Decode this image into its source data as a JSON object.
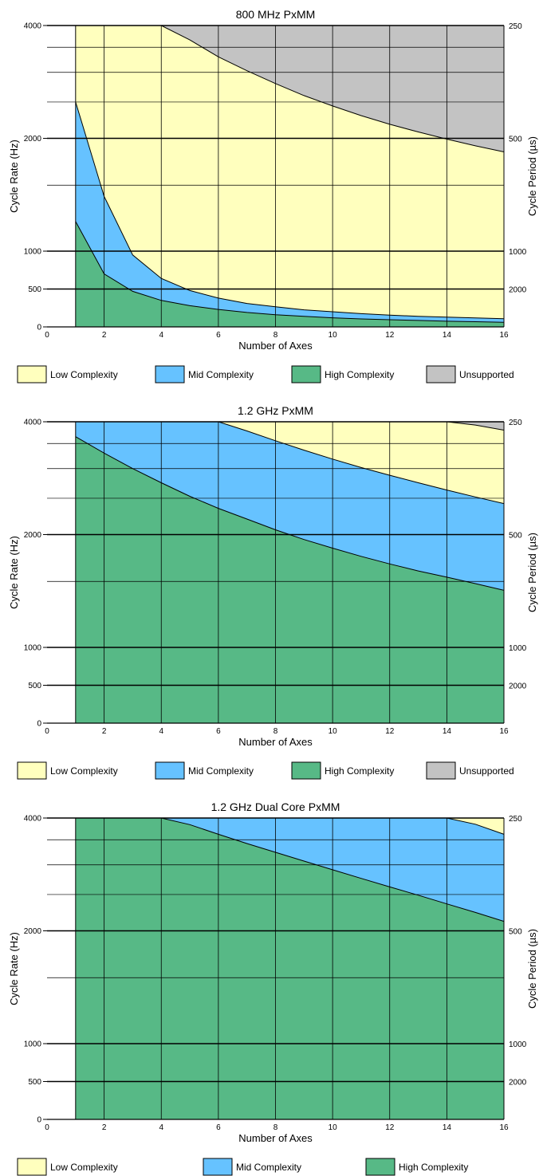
{
  "chart_data": [
    {
      "type": "area",
      "title": "800 MHz PxMM",
      "xlabel": "Number of Axes",
      "ylabel": "Cycle Rate (Hz)",
      "y2label": "Cycle Period (µs)",
      "xlim": [
        0,
        16
      ],
      "xticks": [
        "0",
        "2",
        "4",
        "6",
        "8",
        "10",
        "12",
        "14",
        "16"
      ],
      "yticks": [
        "0",
        "500",
        "1000",
        "2000",
        "4000"
      ],
      "y2ticks": [
        "250",
        "500",
        "1000",
        "2000"
      ],
      "grid": true,
      "background_region": "Low Complexity",
      "legend_placement": "bottom",
      "legend": [
        "Low Complexity",
        "Mid Complexity",
        "High Complexity",
        "Unsupported"
      ],
      "colors": {
        "Low Complexity": "#ffffbe",
        "Mid Complexity": "#66c2ff",
        "High Complexity": "#57b986",
        "Unsupported": "#c3c3c3"
      },
      "x": [
        1,
        2,
        3,
        4,
        5,
        6,
        7,
        8,
        9,
        10,
        11,
        12,
        13,
        14,
        15,
        16
      ],
      "series": [
        {
          "name": "High Complexity",
          "values": [
            1200,
            700,
            470,
            350,
            280,
            230,
            190,
            160,
            140,
            120,
            105,
            95,
            85,
            75,
            68,
            60
          ]
        },
        {
          "name": "Mid Complexity",
          "values": [
            2500,
            1400,
            950,
            640,
            480,
            380,
            310,
            265,
            225,
            200,
            175,
            155,
            140,
            128,
            118,
            108
          ]
        },
        {
          "name": "Unsupported",
          "values": [
            4000,
            4000,
            4000,
            4000,
            3660,
            3300,
            3030,
            2800,
            2600,
            2440,
            2300,
            2180,
            2080,
            1990,
            1910,
            1840
          ]
        }
      ]
    },
    {
      "type": "area",
      "title": "1.2 GHz PxMM",
      "xlabel": "Number of Axes",
      "ylabel": "Cycle Rate (Hz)",
      "y2label": "Cycle Period (µs)",
      "xlim": [
        0,
        16
      ],
      "xticks": [
        "0",
        "2",
        "4",
        "6",
        "8",
        "10",
        "12",
        "14",
        "16"
      ],
      "yticks": [
        "0",
        "500",
        "1000",
        "2000",
        "4000"
      ],
      "y2ticks": [
        "250",
        "500",
        "1000",
        "2000"
      ],
      "grid": true,
      "background_region": "Low Complexity",
      "legend_placement": "bottom",
      "legend": [
        "Low Complexity",
        "Mid Complexity",
        "High Complexity",
        "Unsupported"
      ],
      "colors": {
        "Low Complexity": "#ffffbe",
        "Mid Complexity": "#66c2ff",
        "High Complexity": "#57b986",
        "Unsupported": "#c3c3c3"
      },
      "x": [
        1,
        2,
        3,
        4,
        5,
        6,
        7,
        8,
        9,
        10,
        11,
        12,
        13,
        14,
        15,
        16
      ],
      "series": [
        {
          "name": "High Complexity",
          "values": [
            3650,
            3300,
            3000,
            2750,
            2530,
            2350,
            2200,
            2060,
            1940,
            1840,
            1750,
            1670,
            1600,
            1540,
            1480,
            1420
          ]
        },
        {
          "name": "Mid Complexity",
          "values": [
            4000,
            4000,
            4000,
            4000,
            4000,
            4000,
            3780,
            3560,
            3360,
            3180,
            3020,
            2880,
            2750,
            2630,
            2520,
            2420
          ]
        },
        {
          "name": "Unsupported",
          "values": [
            4000,
            4000,
            4000,
            4000,
            4000,
            4000,
            4000,
            4000,
            4000,
            4000,
            4000,
            4000,
            4000,
            4000,
            3920,
            3800
          ]
        }
      ]
    },
    {
      "type": "area",
      "title": "1.2 GHz Dual Core PxMM",
      "xlabel": "Number of Axes",
      "ylabel": "Cycle Rate (Hz)",
      "y2label": "Cycle Period (µs)",
      "xlim": [
        0,
        16
      ],
      "xticks": [
        "0",
        "2",
        "4",
        "6",
        "8",
        "10",
        "12",
        "14",
        "16"
      ],
      "yticks": [
        "0",
        "500",
        "1000",
        "2000",
        "4000"
      ],
      "y2ticks": [
        "250",
        "500",
        "1000",
        "2000"
      ],
      "grid": true,
      "background_region": "Low Complexity",
      "legend_placement": "bottom",
      "legend": [
        "Low Complexity",
        "Mid Complexity",
        "High Complexity"
      ],
      "colors": {
        "Low Complexity": "#ffffbe",
        "Mid Complexity": "#66c2ff",
        "High Complexity": "#57b986"
      },
      "x": [
        1,
        2,
        3,
        4,
        5,
        6,
        7,
        8,
        9,
        10,
        11,
        12,
        13,
        14,
        15,
        16
      ],
      "series": [
        {
          "name": "High Complexity",
          "values": [
            4000,
            4000,
            4000,
            4000,
            3840,
            3620,
            3420,
            3240,
            3070,
            2910,
            2760,
            2620,
            2490,
            2360,
            2240,
            2120
          ]
        },
        {
          "name": "Mid Complexity",
          "values": [
            4000,
            4000,
            4000,
            4000,
            4000,
            4000,
            4000,
            4000,
            4000,
            4000,
            4000,
            4000,
            4000,
            4000,
            3850,
            3620
          ]
        }
      ]
    }
  ]
}
